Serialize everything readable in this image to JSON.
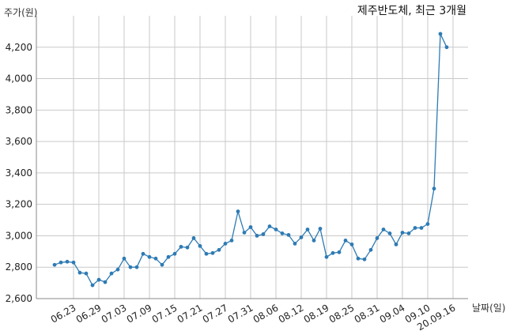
{
  "chart_data": {
    "type": "line",
    "title": "제주반도체, 최근 3개월",
    "ylabel": "주가(원)",
    "xlabel": "날짜(일)",
    "ylim": [
      2600,
      4400
    ],
    "yticks": [
      2600,
      2800,
      3000,
      3200,
      3400,
      3600,
      3800,
      4000,
      4200
    ],
    "ytick_labels": [
      "2,600",
      "2,800",
      "3,000",
      "3,200",
      "3,400",
      "3,600",
      "3,800",
      "4,000",
      "4,200"
    ],
    "xtick_labels": [
      "06.23",
      "06.29",
      "07.03",
      "07.09",
      "07.15",
      "07.21",
      "07.27",
      "07.31",
      "08.06",
      "08.12",
      "08.19",
      "08.25",
      "08.31",
      "09.04",
      "09.10",
      "20.09.16"
    ],
    "xtick_index": [
      3,
      7,
      11,
      15,
      19,
      23,
      27,
      31,
      35,
      39,
      43,
      47,
      51,
      55,
      59,
      63
    ],
    "grid": true,
    "line_color": "#2e7bb4",
    "series": [
      {
        "values": [
          2815,
          2830,
          2835,
          2830,
          2765,
          2760,
          2685,
          2720,
          2705,
          2760,
          2785,
          2855,
          2800,
          2800,
          2885,
          2865,
          2855,
          2815,
          2865,
          2885,
          2930,
          2925,
          2985,
          2935,
          2885,
          2890,
          2910,
          2950,
          2970,
          3155,
          3020,
          3055,
          3000,
          3010,
          3060,
          3040,
          3015,
          3005,
          2950,
          2990,
          3040,
          2970,
          3045,
          2865,
          2890,
          2895,
          2970,
          2945,
          2855,
          2850,
          2910,
          2985,
          3040,
          3015,
          2945,
          3020,
          3015,
          3050,
          3050,
          3075,
          3300,
          4285,
          4200
        ]
      }
    ]
  }
}
